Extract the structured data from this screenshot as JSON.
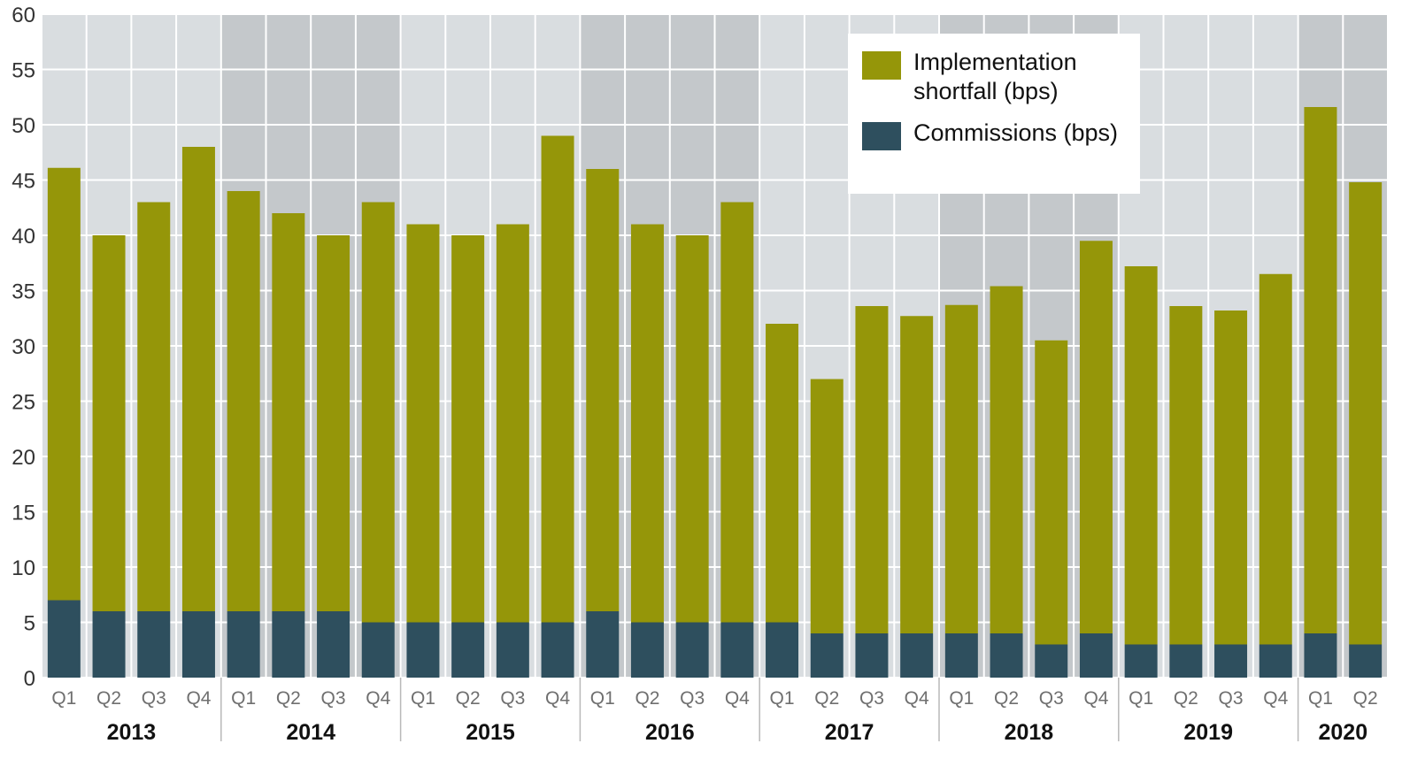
{
  "chart_data": {
    "type": "bar",
    "stacked": true,
    "title": "",
    "xlabel": "",
    "ylabel": "",
    "ylim": [
      0,
      60
    ],
    "yticks": [
      0,
      5,
      10,
      15,
      20,
      25,
      30,
      35,
      40,
      45,
      50,
      55,
      60
    ],
    "grid": true,
    "legend_position": "top-right",
    "years": [
      {
        "label": "2013",
        "quarters": 4
      },
      {
        "label": "2014",
        "quarters": 4
      },
      {
        "label": "2015",
        "quarters": 4
      },
      {
        "label": "2016",
        "quarters": 4
      },
      {
        "label": "2017",
        "quarters": 4
      },
      {
        "label": "2018",
        "quarters": 4
      },
      {
        "label": "2019",
        "quarters": 4
      },
      {
        "label": "2020",
        "quarters": 2
      }
    ],
    "categories": [
      "Q1",
      "Q2",
      "Q3",
      "Q4",
      "Q1",
      "Q2",
      "Q3",
      "Q4",
      "Q1",
      "Q2",
      "Q3",
      "Q4",
      "Q1",
      "Q2",
      "Q3",
      "Q4",
      "Q1",
      "Q2",
      "Q3",
      "Q4",
      "Q1",
      "Q2",
      "Q3",
      "Q4",
      "Q1",
      "Q2",
      "Q3",
      "Q4",
      "Q1",
      "Q2"
    ],
    "series": [
      {
        "name": "Commissions (bps)",
        "color": "#2e4f5e",
        "values": [
          7,
          6,
          6,
          6,
          6,
          6,
          6,
          5,
          5,
          5,
          5,
          5,
          6,
          5,
          5,
          5,
          5,
          4,
          4,
          4,
          4,
          4,
          3,
          4,
          3,
          3,
          3,
          3,
          4,
          3
        ]
      },
      {
        "name": "Implementation shortfall (bps)",
        "color": "#959609",
        "totals": [
          46.1,
          40,
          43,
          48,
          44,
          42,
          40,
          43,
          41,
          40,
          41,
          49,
          46,
          41,
          40,
          43,
          32,
          27,
          33.6,
          32.7,
          33.7,
          35.4,
          30.5,
          39.5,
          37.2,
          33.6,
          33.2,
          36.5,
          51.6,
          44.8
        ]
      }
    ],
    "legend": [
      {
        "label": "Implementation shortfall (bps)",
        "color": "#959609"
      },
      {
        "label": "Commissions (bps)",
        "color": "#2e4f5e"
      }
    ],
    "band_colors": [
      "#d9dde0",
      "#c4c8cb"
    ],
    "grid_color": "#ffffff",
    "separator_color": "#b9b9b9"
  }
}
